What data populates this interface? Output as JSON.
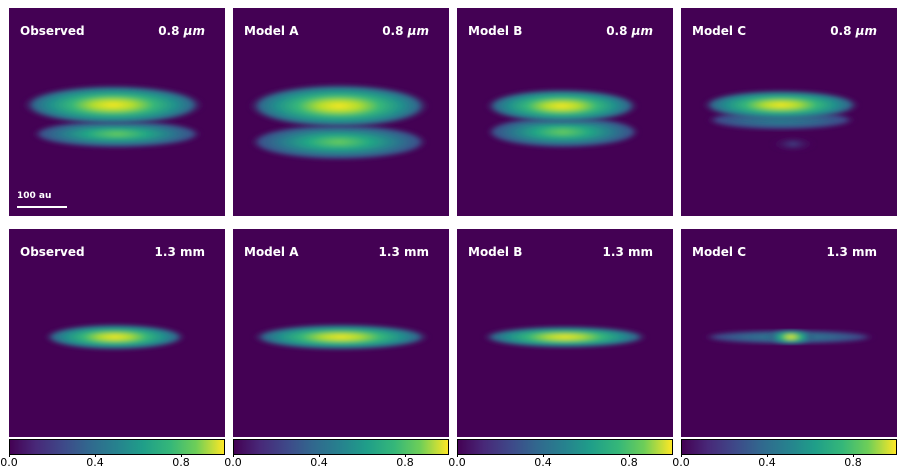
{
  "panels": [
    {
      "label": "Observed",
      "wavelength_value": "0.8",
      "wavelength_unit": "μm",
      "scalebar": "100 au"
    },
    {
      "label": "Model A",
      "wavelength_value": "0.8",
      "wavelength_unit": "μm"
    },
    {
      "label": "Model B",
      "wavelength_value": "0.8",
      "wavelength_unit": "μm"
    },
    {
      "label": "Model C",
      "wavelength_value": "0.8",
      "wavelength_unit": "μm"
    },
    {
      "label": "Observed",
      "wavelength": "1.3 mm"
    },
    {
      "label": "Model A",
      "wavelength": "1.3 mm"
    },
    {
      "label": "Model B",
      "wavelength": "1.3 mm"
    },
    {
      "label": "Model C",
      "wavelength": "1.3 mm"
    }
  ],
  "colorbar": {
    "colormap": "viridis",
    "ticks": [
      "0.0",
      "0.4",
      "0.8"
    ]
  },
  "colors": {
    "background": "#440154",
    "text": "#ffffff"
  }
}
